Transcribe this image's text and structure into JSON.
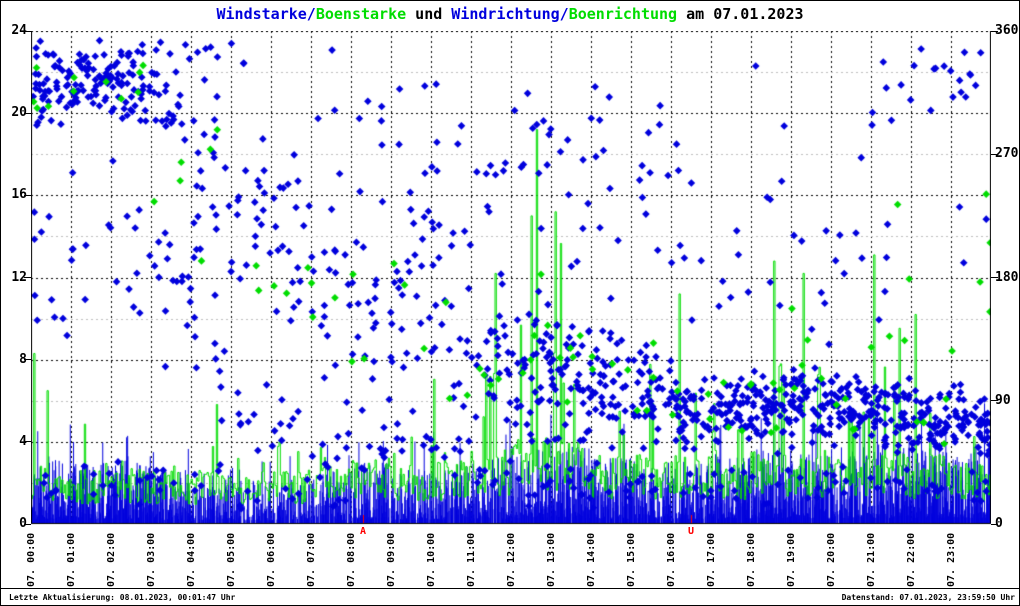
{
  "header": {
    "segments": [
      {
        "text": "Windstarke/",
        "color": "#0000dd"
      },
      {
        "text": "Boenstarke",
        "color": "#00dd00"
      },
      {
        "text": " und ",
        "color": "#000000"
      },
      {
        "text": "Windrichtung/",
        "color": "#0000dd"
      },
      {
        "text": "Boenrichtung",
        "color": "#00dd00"
      },
      {
        "text": " am 07.01.2023",
        "color": "#000000"
      }
    ]
  },
  "footer": {
    "left": "Letzte Aktualisierung: 08.01.2023, 00:01:47 Uhr",
    "right": "Datenstand: 07.01.2023, 23:59:50 Uhr"
  },
  "colors": {
    "wind": "#0000dd",
    "gust": "#00dd00",
    "grid_major": "#000000",
    "grid_minor": "#bdbdbd",
    "annotation": "#ff0000",
    "background": "#ffffff"
  },
  "chart_data": {
    "type": "mixed",
    "title": "Windstarke/Boenstarke und Windrichtung/Boenrichtung am 07.01.2023",
    "seed": 1234567,
    "x_axis": {
      "hours": 24,
      "labels": [
        "07. 00:00",
        "07. 01:00",
        "07. 02:00",
        "07. 03:00",
        "07. 04:00",
        "07. 05:00",
        "07. 06:00",
        "07. 07:00",
        "07. 08:00",
        "07. 09:00",
        "07. 10:00",
        "07. 11:00",
        "07. 12:00",
        "07. 13:00",
        "07. 14:00",
        "07. 15:00",
        "07. 16:00",
        "07. 17:00",
        "07. 18:00",
        "07. 19:00",
        "07. 20:00",
        "07. 21:00",
        "07. 22:00",
        "07. 23:00"
      ]
    },
    "y_left": {
      "min": 0,
      "max": 24,
      "major": 4,
      "minor": 2,
      "ticks": [
        "0",
        "4",
        "8",
        "12",
        "16",
        "20",
        "24"
      ]
    },
    "y_right": {
      "min": 0,
      "max": 360,
      "major": 90,
      "ticks": [
        "0",
        "90",
        "180",
        "270",
        "360"
      ]
    },
    "grid": {
      "vertical_per_hour": true,
      "h_major_every": 4,
      "h_minor_every": 2
    },
    "annotations": [
      {
        "text": "A",
        "hour": 8.3,
        "color": "#ff0000",
        "meaning": "sunrise-marker"
      },
      {
        "text": "U",
        "hour": 16.5,
        "color": "#ff0000",
        "meaning": "sunset-marker"
      }
    ],
    "series": [
      {
        "name": "Windstarke",
        "style": "impulses",
        "axis": "left",
        "color": "#0000dd",
        "hourly_base": [
          2.1,
          1.9,
          2.1,
          1.7,
          1.7,
          1.4,
          1.5,
          1.7,
          1.9,
          1.7,
          1.9,
          2.1,
          2.4,
          2.4,
          2.1,
          2.0,
          2.0,
          2.2,
          2.4,
          2.2,
          2.4,
          2.5,
          2.4,
          2.5
        ],
        "hourly_max": [
          5.2,
          4.6,
          4.9,
          3.9,
          3.9,
          3.1,
          3.4,
          3.9,
          4.4,
          4.1,
          4.6,
          5.1,
          6.2,
          6.0,
          5.1,
          4.6,
          4.4,
          5.0,
          5.6,
          5.1,
          5.8,
          6.0,
          5.6,
          6.0
        ],
        "hourly_gap": [
          0.1,
          0.12,
          0.12,
          0.18,
          0.22,
          0.3,
          0.32,
          0.28,
          0.22,
          0.25,
          0.2,
          0.15,
          0.08,
          0.08,
          0.12,
          0.15,
          0.12,
          0.1,
          0.08,
          0.1,
          0.08,
          0.06,
          0.08,
          0.06
        ]
      },
      {
        "name": "Boenstarke",
        "style": "histeps",
        "axis": "left",
        "color": "#00dd00",
        "hourly_base": [
          2.4,
          2.1,
          2.2,
          2.1,
          2.1,
          1.9,
          2.1,
          2.3,
          2.5,
          2.3,
          2.5,
          2.9,
          3.4,
          3.2,
          2.7,
          2.7,
          2.7,
          2.5,
          2.9,
          2.9,
          2.7,
          2.9,
          2.7,
          2.5
        ],
        "hourly_max": [
          8.3,
          5.2,
          5.6,
          5.2,
          6.3,
          5.2,
          6.6,
          7.2,
          7.6,
          7.2,
          8.1,
          12.2,
          19.2,
          15.6,
          9.2,
          10.6,
          11.2,
          8.2,
          12.8,
          12.4,
          9.2,
          13.1,
          10.2,
          8.2
        ],
        "spikes": [
          [
            0.08,
            8.3
          ],
          [
            11.6,
            12.2
          ],
          [
            12.5,
            15.0
          ],
          [
            12.63,
            19.2
          ],
          [
            13.1,
            15.2
          ],
          [
            16.2,
            11.2
          ],
          [
            18.55,
            12.8
          ],
          [
            19.3,
            12.2
          ],
          [
            21.05,
            13.1
          ],
          [
            22.1,
            10.2
          ]
        ]
      },
      {
        "name": "Windrichtung",
        "style": "diamonds",
        "axis": "right",
        "color": "#0000dd",
        "hourly_bands": [
          [
            [
              285,
              360,
              48
            ],
            [
              100,
              280,
              10
            ],
            [
              5,
              60,
              6
            ]
          ],
          [
            [
              290,
              360,
              52
            ],
            [
              130,
              285,
              8
            ],
            [
              5,
              60,
              5
            ]
          ],
          [
            [
              280,
              360,
              46
            ],
            [
              100,
              279,
              10
            ],
            [
              5,
              60,
              6
            ]
          ],
          [
            [
              260,
              360,
              26
            ],
            [
              100,
              259,
              16
            ],
            [
              5,
              60,
              6
            ]
          ],
          [
            [
              170,
              330,
              22
            ],
            [
              60,
              169,
              10
            ],
            [
              331,
              360,
              4
            ],
            [
              5,
              59,
              5
            ]
          ],
          [
            [
              110,
              300,
              20
            ],
            [
              40,
              109,
              8
            ],
            [
              301,
              360,
              3
            ],
            [
              5,
              39,
              4
            ]
          ],
          [
            [
              100,
              300,
              20
            ],
            [
              40,
              99,
              8
            ],
            [
              5,
              39,
              4
            ]
          ],
          [
            [
              70,
              280,
              20
            ],
            [
              30,
              69,
              9
            ],
            [
              281,
              360,
              3
            ],
            [
              5,
              29,
              4
            ]
          ],
          [
            [
              75,
              260,
              22
            ],
            [
              261,
              340,
              5
            ],
            [
              20,
              74,
              8
            ]
          ],
          [
            [
              95,
              250,
              24
            ],
            [
              40,
              94,
              8
            ],
            [
              251,
              340,
              4
            ]
          ],
          [
            [
              75,
              235,
              24
            ],
            [
              236,
              330,
              6
            ],
            [
              30,
              74,
              8
            ]
          ],
          [
            [
              60,
              185,
              28
            ],
            [
              186,
              320,
              8
            ],
            [
              20,
              59,
              8
            ]
          ],
          [
            [
              50,
              200,
              40
            ],
            [
              201,
              360,
              12
            ],
            [
              10,
              49,
              8
            ]
          ],
          [
            [
              50,
              165,
              46
            ],
            [
              166,
              330,
              8
            ],
            [
              10,
              49,
              8
            ]
          ],
          [
            [
              55,
              150,
              42
            ],
            [
              151,
              360,
              10
            ],
            [
              10,
              54,
              6
            ]
          ],
          [
            [
              55,
              135,
              42
            ],
            [
              136,
              360,
              10
            ],
            [
              10,
              54,
              6
            ]
          ],
          [
            [
              50,
              115,
              46
            ],
            [
              116,
              300,
              8
            ],
            [
              10,
              49,
              6
            ]
          ],
          [
            [
              55,
              115,
              50
            ],
            [
              116,
              250,
              6
            ],
            [
              10,
              54,
              6
            ]
          ],
          [
            [
              55,
              115,
              50
            ],
            [
              116,
              360,
              7
            ],
            [
              10,
              54,
              6
            ]
          ],
          [
            [
              55,
              120,
              50
            ],
            [
              121,
              250,
              7
            ],
            [
              10,
              54,
              6
            ]
          ],
          [
            [
              55,
              115,
              54
            ],
            [
              116,
              300,
              6
            ],
            [
              10,
              54,
              6
            ]
          ],
          [
            [
              50,
              110,
              54
            ],
            [
              270,
              360,
              7
            ],
            [
              111,
              269,
              4
            ],
            [
              10,
              49,
              6
            ]
          ],
          [
            [
              45,
              105,
              50
            ],
            [
              295,
              360,
              7
            ],
            [
              10,
              44,
              6
            ]
          ],
          [
            [
              45,
              105,
              50
            ],
            [
              295,
              360,
              9
            ],
            [
              106,
              294,
              3
            ],
            [
              10,
              44,
              6
            ]
          ]
        ]
      },
      {
        "name": "Boenrichtung",
        "style": "diamonds",
        "axis": "right",
        "color": "#00dd00",
        "hourly_bands": [
          [
            [
              290,
              350,
              4
            ]
          ],
          [
            [
              295,
              355,
              3
            ]
          ],
          [
            [
              285,
              355,
              4
            ]
          ],
          [
            [
              150,
              340,
              3
            ]
          ],
          [
            [
              150,
              320,
              3
            ]
          ],
          [
            [
              100,
              280,
              2
            ]
          ],
          [
            [
              80,
              280,
              3
            ]
          ],
          [
            [
              60,
              250,
              3
            ]
          ],
          [
            [
              80,
              250,
              3
            ]
          ],
          [
            [
              100,
              240,
              3
            ]
          ],
          [
            [
              70,
              230,
              3
            ]
          ],
          [
            [
              60,
              180,
              4
            ]
          ],
          [
            [
              60,
              200,
              5
            ]
          ],
          [
            [
              60,
              160,
              5
            ]
          ],
          [
            [
              60,
              150,
              4
            ]
          ],
          [
            [
              60,
              135,
              4
            ]
          ],
          [
            [
              55,
              115,
              4
            ]
          ],
          [
            [
              55,
              115,
              4
            ]
          ],
          [
            [
              55,
              160,
              5
            ]
          ],
          [
            [
              55,
              165,
              5
            ]
          ],
          [
            [
              55,
              115,
              4
            ]
          ],
          [
            [
              50,
              310,
              5
            ]
          ],
          [
            [
              45,
              105,
              5
            ]
          ],
          [
            [
              45,
              330,
              5
            ]
          ]
        ]
      }
    ]
  }
}
